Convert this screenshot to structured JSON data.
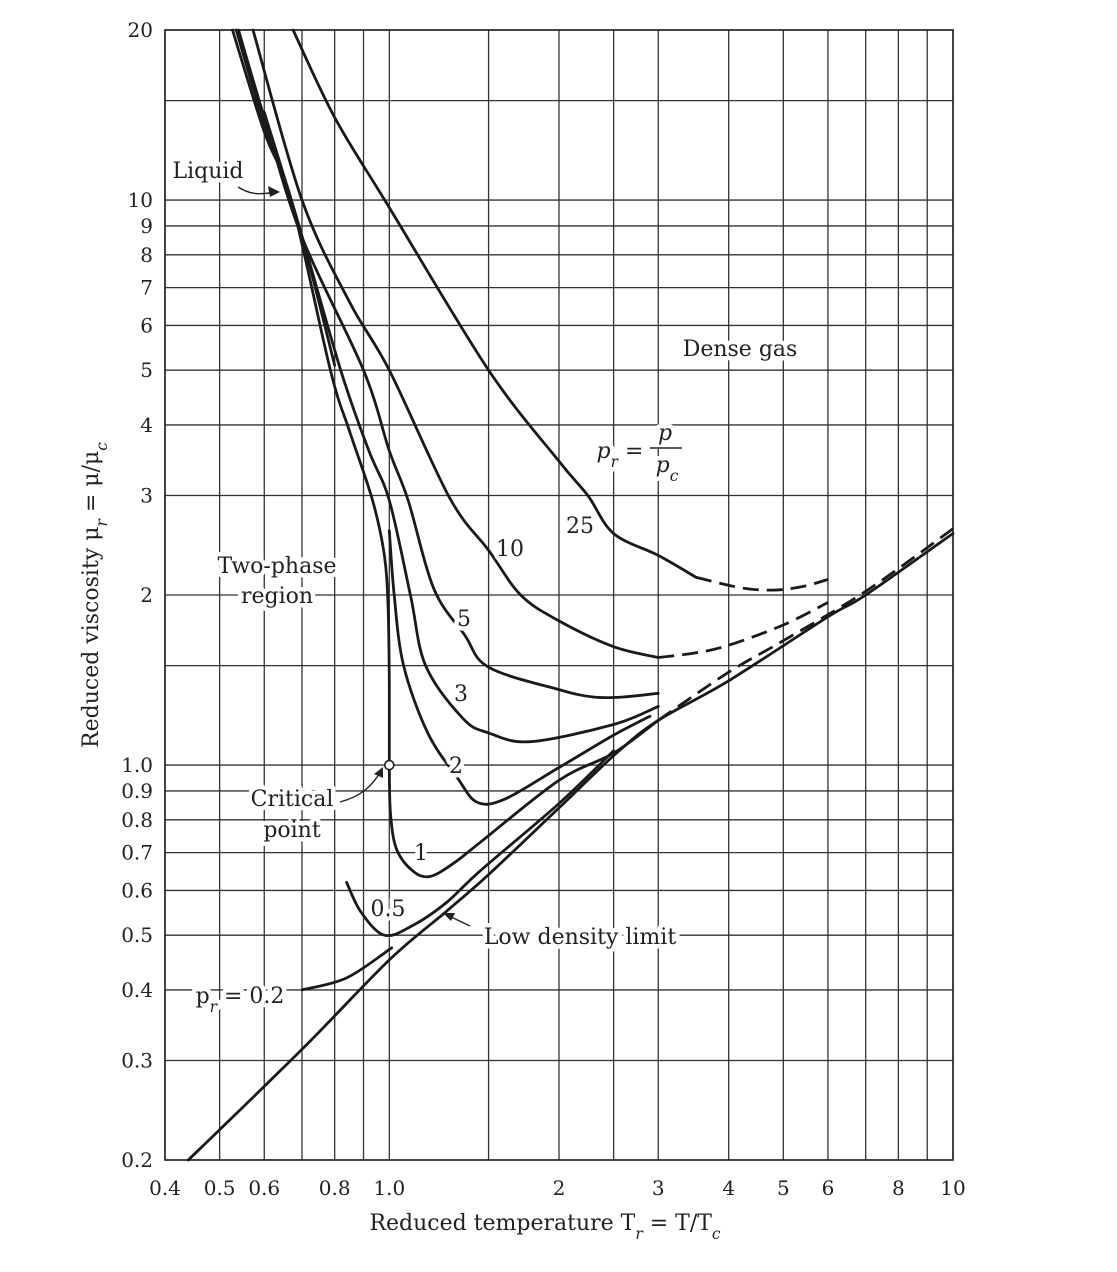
{
  "chart_data": {
    "type": "line",
    "xlabel": "Reduced temperature T_r = T/T_c",
    "ylabel": "Reduced viscosity μ_r = μ/μ_c",
    "xscale": "log",
    "yscale": "log",
    "xlim": [
      0.4,
      10
    ],
    "ylim": [
      0.2,
      20
    ],
    "grid": true,
    "x_gridlines": [
      0.4,
      0.5,
      0.6,
      0.7,
      0.8,
      0.9,
      1.0,
      1.5,
      2,
      2.5,
      3,
      4,
      5,
      6,
      7,
      8,
      9,
      10
    ],
    "y_gridlines": [
      0.2,
      0.3,
      0.4,
      0.5,
      0.6,
      0.7,
      0.8,
      0.9,
      1.0,
      1.5,
      2,
      3,
      4,
      5,
      6,
      7,
      8,
      9,
      10,
      15,
      20
    ],
    "xticks": [
      {
        "v": 0.4,
        "label": "0.4"
      },
      {
        "v": 0.5,
        "label": "0.5"
      },
      {
        "v": 0.6,
        "label": "0.6"
      },
      {
        "v": 0.8,
        "label": "0.8"
      },
      {
        "v": 1.0,
        "label": "1.0"
      },
      {
        "v": 2,
        "label": "2"
      },
      {
        "v": 3,
        "label": "3"
      },
      {
        "v": 4,
        "label": "4"
      },
      {
        "v": 5,
        "label": "5"
      },
      {
        "v": 6,
        "label": "6"
      },
      {
        "v": 8,
        "label": "8"
      },
      {
        "v": 10,
        "label": "10"
      }
    ],
    "yticks": [
      {
        "v": 0.2,
        "label": "0.2"
      },
      {
        "v": 0.3,
        "label": "0.3"
      },
      {
        "v": 0.4,
        "label": "0.4"
      },
      {
        "v": 0.5,
        "label": "0.5"
      },
      {
        "v": 0.6,
        "label": "0.6"
      },
      {
        "v": 0.7,
        "label": "0.7"
      },
      {
        "v": 0.8,
        "label": "0.8"
      },
      {
        "v": 0.9,
        "label": "0.9"
      },
      {
        "v": 1.0,
        "label": "1.0"
      },
      {
        "v": 2,
        "label": "2"
      },
      {
        "v": 3,
        "label": "3"
      },
      {
        "v": 4,
        "label": "4"
      },
      {
        "v": 5,
        "label": "5"
      },
      {
        "v": 6,
        "label": "6"
      },
      {
        "v": 7,
        "label": "7"
      },
      {
        "v": 8,
        "label": "8"
      },
      {
        "v": 9,
        "label": "9"
      },
      {
        "v": 10,
        "label": "10"
      },
      {
        "v": 20,
        "label": "20"
      }
    ],
    "series": [
      {
        "name": "25",
        "points": [
          [
            0.675,
            20
          ],
          [
            0.8,
            14
          ],
          [
            1.0,
            9.7
          ],
          [
            1.5,
            5
          ],
          [
            2.0,
            3.45
          ],
          [
            2.25,
            3.0
          ],
          [
            2.5,
            2.57
          ],
          [
            3.0,
            2.35
          ],
          [
            3.5,
            2.15
          ]
        ],
        "dashed_points": [
          [
            3.5,
            2.15
          ],
          [
            4.2,
            2.06
          ],
          [
            4.8,
            2.04
          ],
          [
            5.4,
            2.07
          ],
          [
            6.0,
            2.13
          ]
        ]
      },
      {
        "name": "10",
        "points": [
          [
            0.573,
            20
          ],
          [
            0.7,
            10
          ],
          [
            0.85,
            6.6
          ],
          [
            1.0,
            5
          ],
          [
            1.28,
            2.97
          ],
          [
            1.5,
            2.4
          ],
          [
            1.71,
            2.0
          ],
          [
            2.0,
            1.8
          ],
          [
            2.5,
            1.62
          ],
          [
            3.0,
            1.55
          ]
        ],
        "dashed_points": [
          [
            3.0,
            1.55
          ],
          [
            3.5,
            1.58
          ],
          [
            4.0,
            1.63
          ],
          [
            5.0,
            1.77
          ],
          [
            6.0,
            1.94
          ]
        ]
      },
      {
        "name": "5",
        "points": [
          [
            0.54,
            20
          ],
          [
            0.6,
            14
          ],
          [
            0.7,
            8.6
          ],
          [
            0.9,
            5
          ],
          [
            1.0,
            3.6
          ],
          [
            1.08,
            2.94
          ],
          [
            1.2,
            2.05
          ],
          [
            1.36,
            1.7
          ],
          [
            1.5,
            1.49
          ],
          [
            2.0,
            1.36
          ],
          [
            2.3,
            1.32
          ],
          [
            2.6,
            1.32
          ],
          [
            3.0,
            1.34
          ]
        ]
      },
      {
        "name": "3",
        "points": [
          [
            0.535,
            20
          ],
          [
            0.6,
            13.6
          ],
          [
            0.67,
            10
          ],
          [
            0.82,
            5
          ],
          [
            0.92,
            3.6
          ],
          [
            1.0,
            2.94
          ],
          [
            1.09,
            2.0
          ],
          [
            1.16,
            1.5
          ],
          [
            1.35,
            1.21
          ],
          [
            1.5,
            1.14
          ],
          [
            1.78,
            1.1
          ],
          [
            2.5,
            1.18
          ],
          [
            3.0,
            1.27
          ]
        ]
      },
      {
        "name": "2",
        "points": [
          [
            1.0,
            2.6
          ],
          [
            1.02,
            2.0
          ],
          [
            1.06,
            1.5
          ],
          [
            1.17,
            1.14
          ],
          [
            1.32,
            0.95
          ],
          [
            1.43,
            0.86
          ],
          [
            1.6,
            0.87
          ],
          [
            2.0,
            0.99
          ],
          [
            2.5,
            1.13
          ],
          [
            2.9,
            1.22
          ]
        ]
      },
      {
        "name": "1",
        "points": [
          [
            0.527,
            20
          ],
          [
            0.6,
            13.2
          ],
          [
            0.67,
            10
          ],
          [
            0.786,
            5
          ],
          [
            0.85,
            3.9
          ],
          [
            0.934,
            2.94
          ],
          [
            0.98,
            2.35
          ],
          [
            0.995,
            1.9
          ],
          [
            1.0,
            1.4
          ],
          [
            1.0,
            1.0
          ],
          [
            1.005,
            0.82
          ],
          [
            1.03,
            0.71
          ],
          [
            1.1,
            0.65
          ],
          [
            1.18,
            0.635
          ],
          [
            1.3,
            0.67
          ],
          [
            1.45,
            0.73
          ],
          [
            2.0,
            0.94
          ],
          [
            2.5,
            1.05
          ],
          [
            3.0,
            1.2
          ]
        ],
        "dashed_points": [
          [
            3.0,
            1.2
          ],
          [
            4.0,
            1.46
          ],
          [
            5.0,
            1.66
          ],
          [
            7.0,
            2.03
          ],
          [
            10,
            2.62
          ]
        ]
      },
      {
        "name": "",
        "points": [
          [
            0.6,
            14.3
          ],
          [
            0.7,
            8.6
          ],
          [
            0.8,
            5.1
          ]
        ]
      },
      {
        "name": "0.5",
        "points": [
          [
            0.84,
            0.62
          ],
          [
            0.89,
            0.55
          ],
          [
            0.98,
            0.5
          ],
          [
            1.1,
            0.52
          ],
          [
            1.26,
            0.57
          ],
          [
            1.45,
            0.65
          ],
          [
            2.0,
            0.855
          ],
          [
            2.5,
            1.06
          ]
        ]
      },
      {
        "name": "p_r = 0.2",
        "points": [
          [
            0.7,
            0.4
          ],
          [
            0.84,
            0.42
          ],
          [
            1.01,
            0.475
          ]
        ]
      },
      {
        "name": "Low density limit",
        "points": [
          [
            0.44,
            0.2
          ],
          [
            0.7,
            0.314
          ],
          [
            1.0,
            0.452
          ],
          [
            1.26,
            0.55
          ],
          [
            1.5,
            0.64
          ],
          [
            2.0,
            0.84
          ],
          [
            2.53,
            1.05
          ],
          [
            3.0,
            1.2
          ],
          [
            4.0,
            1.41
          ],
          [
            6.0,
            1.83
          ],
          [
            7.0,
            2.0
          ],
          [
            10,
            2.57
          ]
        ]
      }
    ],
    "critical_point": [
      1.0,
      1.0
    ],
    "annotations": {
      "liquid": "Liquid",
      "two_phase_1": "Two-phase",
      "two_phase_2": "region",
      "critical_1": "Critical",
      "critical_2": "point",
      "dense_gas": "Dense gas",
      "pr_def_lhs": "p_r =",
      "pr_def_num": "p",
      "pr_def_den": "p_c"
    }
  }
}
